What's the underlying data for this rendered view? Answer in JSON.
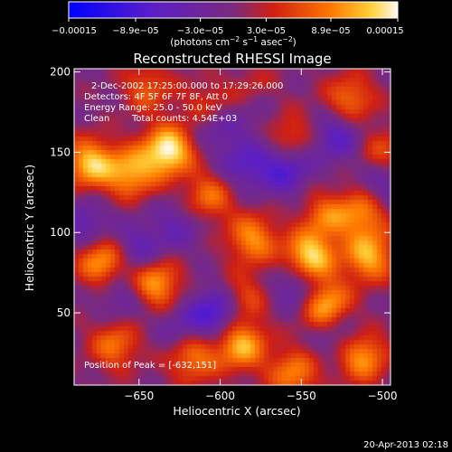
{
  "chart_data": {
    "type": "heatmap",
    "title": "Reconstructed RHESSI Image",
    "xlabel": "Heliocentric X (arcsec)",
    "ylabel": "Heliocentric Y (arcsec)",
    "xlim": [
      -690,
      -495
    ],
    "ylim": [
      5,
      202
    ],
    "x_ticks": [
      -650,
      -600,
      -550,
      -500
    ],
    "x_tick_labels": [
      "−650",
      "−600",
      "−550",
      "−500"
    ],
    "y_ticks": [
      50,
      100,
      150,
      200
    ],
    "y_tick_labels": [
      "50",
      "100",
      "150",
      "200"
    ],
    "colorbar": {
      "ticks": [
        -0.00015,
        -8.9e-05,
        -3e-05,
        3e-05,
        8.9e-05,
        0.00015
      ],
      "tick_labels": [
        "−0.00015",
        "−8.9e−05",
        "−3.0e−05",
        "3.0e−05",
        "8.9e−05",
        "0.00015"
      ],
      "units_main": "(photons cm",
      "units_rest": [
        {
          "sup": "−2",
          "txt": " s"
        },
        {
          "sup": "−1",
          "txt": " asec"
        },
        {
          "sup": "−2",
          "txt": ")"
        }
      ],
      "range": [
        -0.00015,
        0.00015
      ]
    },
    "annotations": {
      "time_range": "2-Dec-2002 17:25:00.000 to 17:29:26.000",
      "detectors": "Detectors: 4F 5F 6F 7F 8F, Att 0",
      "energy_range": "Energy Range: 25.0 - 50.0 keV",
      "method": "Clean",
      "total_counts": "Total counts: 4.54E+03",
      "peak_position": "Position of Peak = [-632,151]"
    },
    "peak": [
      -632,
      151
    ],
    "sources": [
      {
        "x": -632,
        "y": 151,
        "amp": 1.0
      },
      {
        "x": -680,
        "y": 143,
        "amp": 0.82
      },
      {
        "x": -655,
        "y": 137,
        "amp": 0.7
      },
      {
        "x": -607,
        "y": 122,
        "amp": 0.55
      },
      {
        "x": -580,
        "y": 96,
        "amp": 0.65
      },
      {
        "x": -587,
        "y": 30,
        "amp": 0.78
      },
      {
        "x": -617,
        "y": 22,
        "amp": 0.6
      },
      {
        "x": -640,
        "y": 68,
        "amp": 0.75
      },
      {
        "x": -673,
        "y": 82,
        "amp": 0.72
      },
      {
        "x": -665,
        "y": 30,
        "amp": 0.55
      },
      {
        "x": -545,
        "y": 84,
        "amp": 0.95
      },
      {
        "x": -535,
        "y": 55,
        "amp": 0.8
      },
      {
        "x": -508,
        "y": 85,
        "amp": 0.75
      },
      {
        "x": -512,
        "y": 112,
        "amp": 0.6
      },
      {
        "x": -535,
        "y": 110,
        "amp": 0.5
      },
      {
        "x": -520,
        "y": 183,
        "amp": 0.55
      },
      {
        "x": -557,
        "y": 160,
        "amp": 0.45
      },
      {
        "x": -578,
        "y": 186,
        "amp": 0.5
      },
      {
        "x": -555,
        "y": 12,
        "amp": 0.6
      },
      {
        "x": -513,
        "y": 23,
        "amp": 0.75
      },
      {
        "x": -645,
        "y": 190,
        "amp": 0.45
      },
      {
        "x": -585,
        "y": 60,
        "amp": 0.4
      },
      {
        "x": -608,
        "y": 180,
        "amp": 0.35
      },
      {
        "x": -500,
        "y": 150,
        "amp": 0.4
      },
      {
        "x": -603,
        "y": 50,
        "amp": -0.62
      },
      {
        "x": -560,
        "y": 140,
        "amp": -0.55
      },
      {
        "x": -552,
        "y": 67,
        "amp": -0.5
      },
      {
        "x": -528,
        "y": 160,
        "amp": -0.48
      },
      {
        "x": -585,
        "y": 142,
        "amp": -0.42
      },
      {
        "x": -650,
        "y": 90,
        "amp": -0.4
      },
      {
        "x": -683,
        "y": 105,
        "amp": -0.38
      },
      {
        "x": -577,
        "y": 180,
        "amp": -0.45
      },
      {
        "x": -602,
        "y": 165,
        "amp": -0.3
      },
      {
        "x": -625,
        "y": 105,
        "amp": -0.3
      },
      {
        "x": -660,
        "y": 60,
        "amp": -0.32
      },
      {
        "x": -526,
        "y": 35,
        "amp": -0.32
      },
      {
        "x": -500,
        "y": 130,
        "amp": -0.35
      },
      {
        "x": -625,
        "y": 40,
        "amp": -0.28
      }
    ]
  },
  "footer": {
    "timestamp": "20-Apr-2013 02:18"
  }
}
